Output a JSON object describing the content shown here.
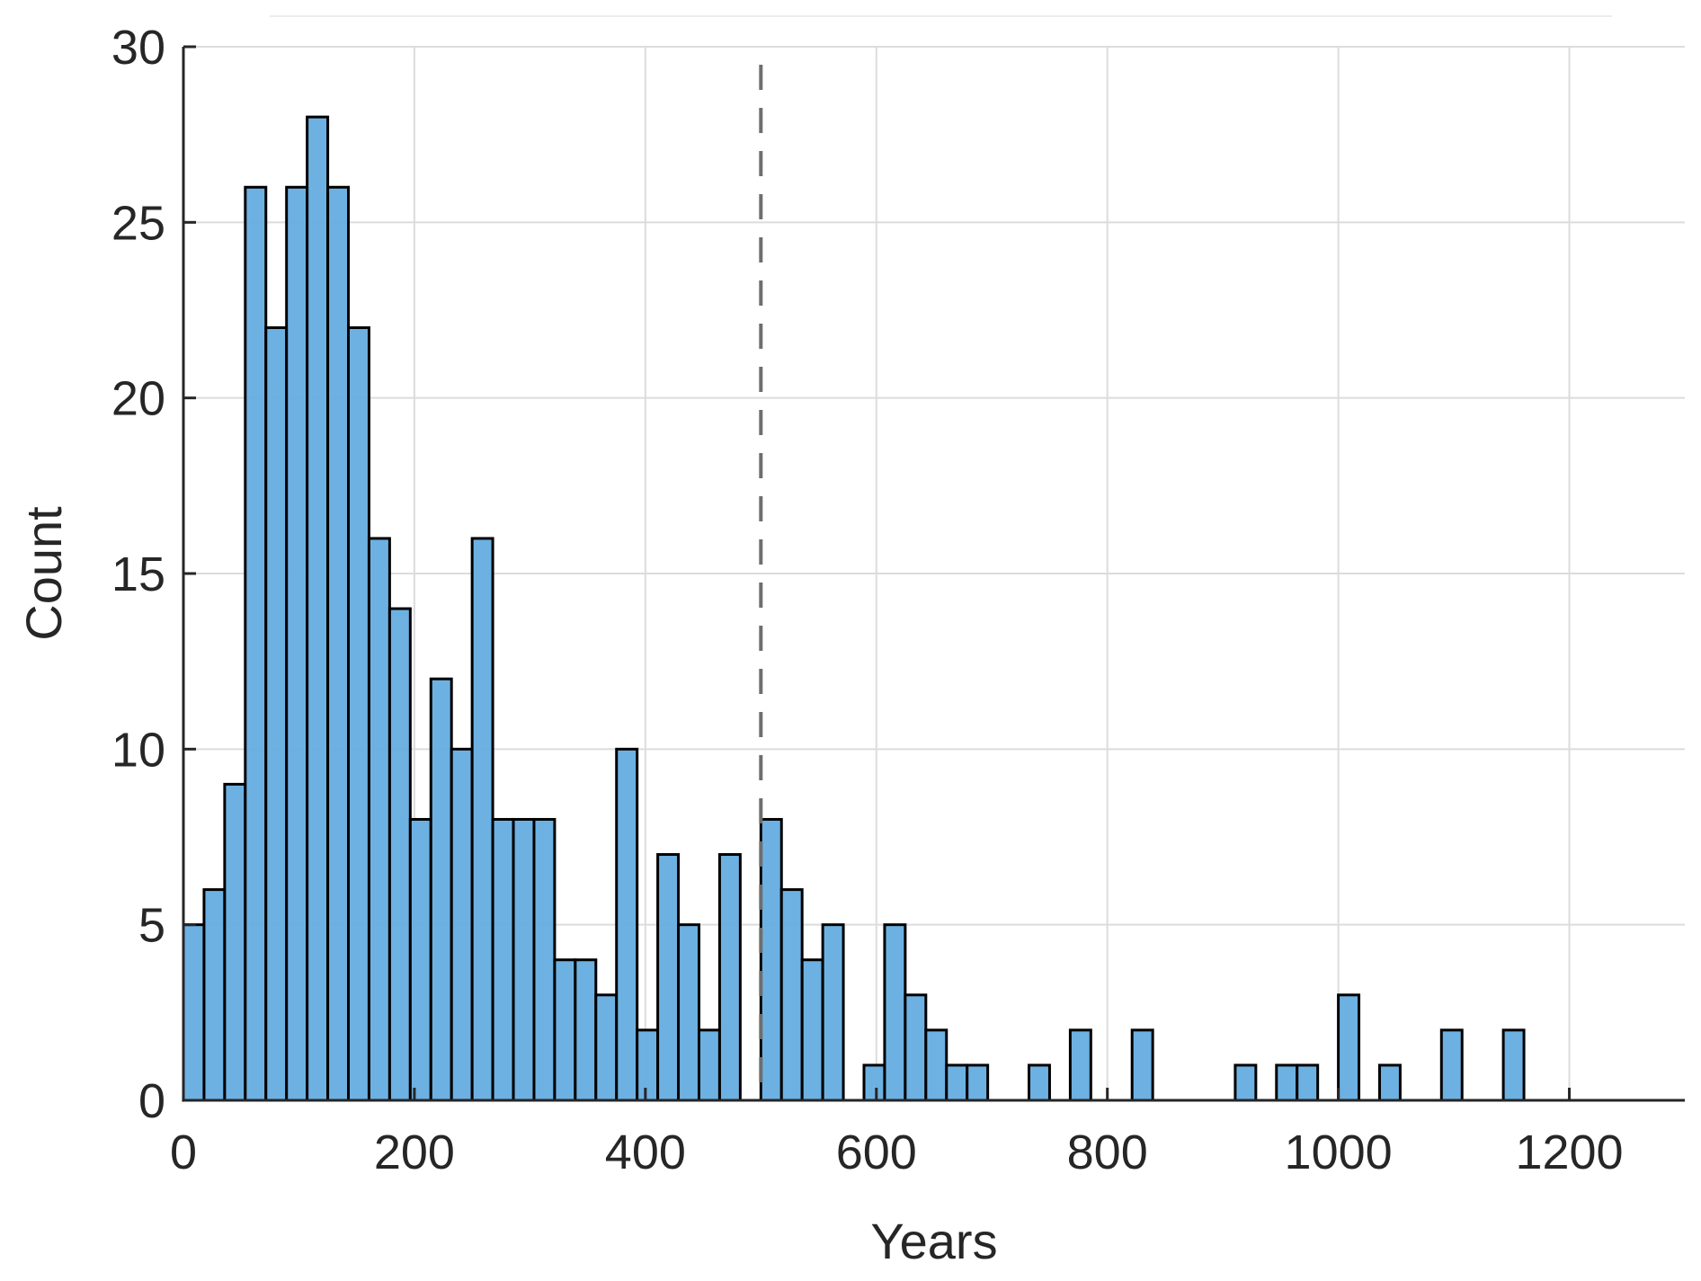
{
  "chart_data": {
    "type": "bar",
    "subtype": "histogram",
    "title": "",
    "xlabel": "Years",
    "ylabel": "Count",
    "xlim": [
      0,
      1300
    ],
    "ylim": [
      0,
      30
    ],
    "xticks": [
      0,
      200,
      400,
      600,
      800,
      1000,
      1200
    ],
    "yticks": [
      0,
      5,
      10,
      15,
      20,
      25,
      30
    ],
    "grid": true,
    "bin_start": 0,
    "bin_width": 17.857,
    "counts": [
      5,
      6,
      9,
      26,
      22,
      26,
      28,
      26,
      22,
      16,
      14,
      8,
      12,
      10,
      16,
      8,
      8,
      8,
      4,
      4,
      3,
      10,
      2,
      7,
      5,
      2,
      7,
      0,
      8,
      6,
      4,
      5,
      0,
      1,
      5,
      3,
      2,
      1,
      1,
      0,
      0,
      1,
      0,
      2,
      0,
      0,
      2,
      0,
      0,
      0,
      0,
      1,
      0,
      1,
      1,
      0,
      3,
      0,
      1,
      0,
      0,
      2,
      0,
      0,
      2
    ],
    "reference_line": {
      "x": 500,
      "style": "dashed",
      "color": "#6e6e6e"
    },
    "bar_color": "#65ADE0",
    "edge_color": "#000000"
  }
}
